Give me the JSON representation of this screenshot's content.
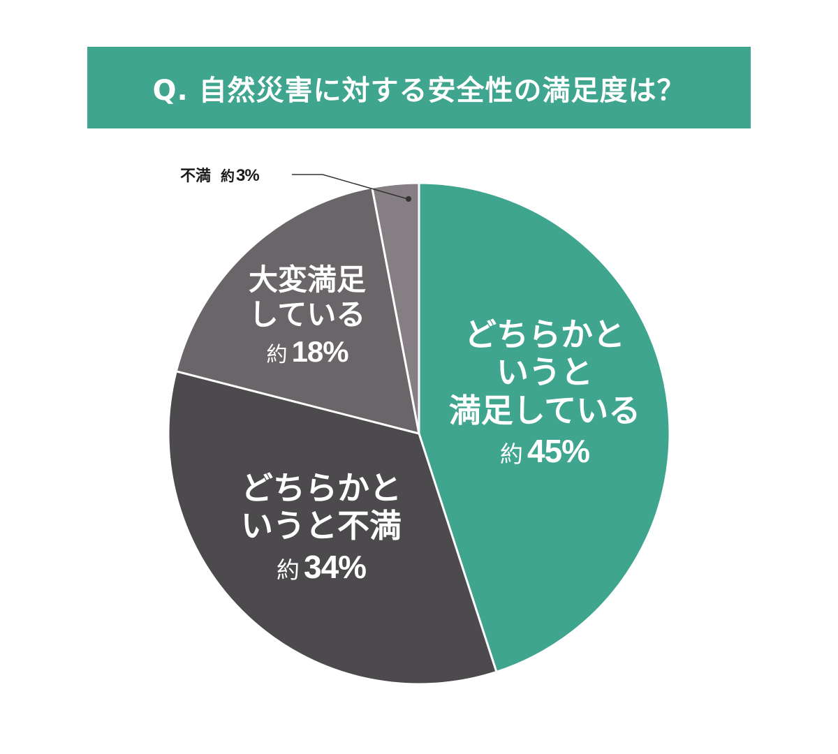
{
  "title": "Q. 自然災害に対する安全性の満足度は？",
  "colors": {
    "title_bg": "#3fa58f",
    "somewhat_satisfied": "#3fa58f",
    "somewhat_dissatisfied": "#4d4a4e",
    "very_satisfied": "#6a6569",
    "dissatisfied": "#857f84",
    "separator": "#ffffff"
  },
  "labels": {
    "somewhat_satisfied": {
      "lines": [
        "どちらかと",
        "いうと",
        "満足している"
      ],
      "approx": "約",
      "pct": "45%"
    },
    "somewhat_dissatisfied": {
      "lines": [
        "どちらかと",
        "いうと不満"
      ],
      "approx": "約",
      "pct": "34%"
    },
    "very_satisfied": {
      "lines": [
        "大変満足",
        "している"
      ],
      "approx": "約",
      "pct": "18%"
    },
    "dissatisfied": {
      "name": "不満",
      "approx": "約",
      "pct": "3%"
    }
  },
  "chart_data": {
    "type": "pie",
    "title": "Q. 自然災害に対する安全性の満足度は？",
    "categories": [
      "どちらかというと満足している",
      "どちらかというと不満",
      "大変満足している",
      "不満"
    ],
    "values": [
      45,
      34,
      18,
      3
    ],
    "unit": "%",
    "value_prefix": "約",
    "start_angle": "12 o'clock, clockwise",
    "legend": "none (direct labels)"
  }
}
